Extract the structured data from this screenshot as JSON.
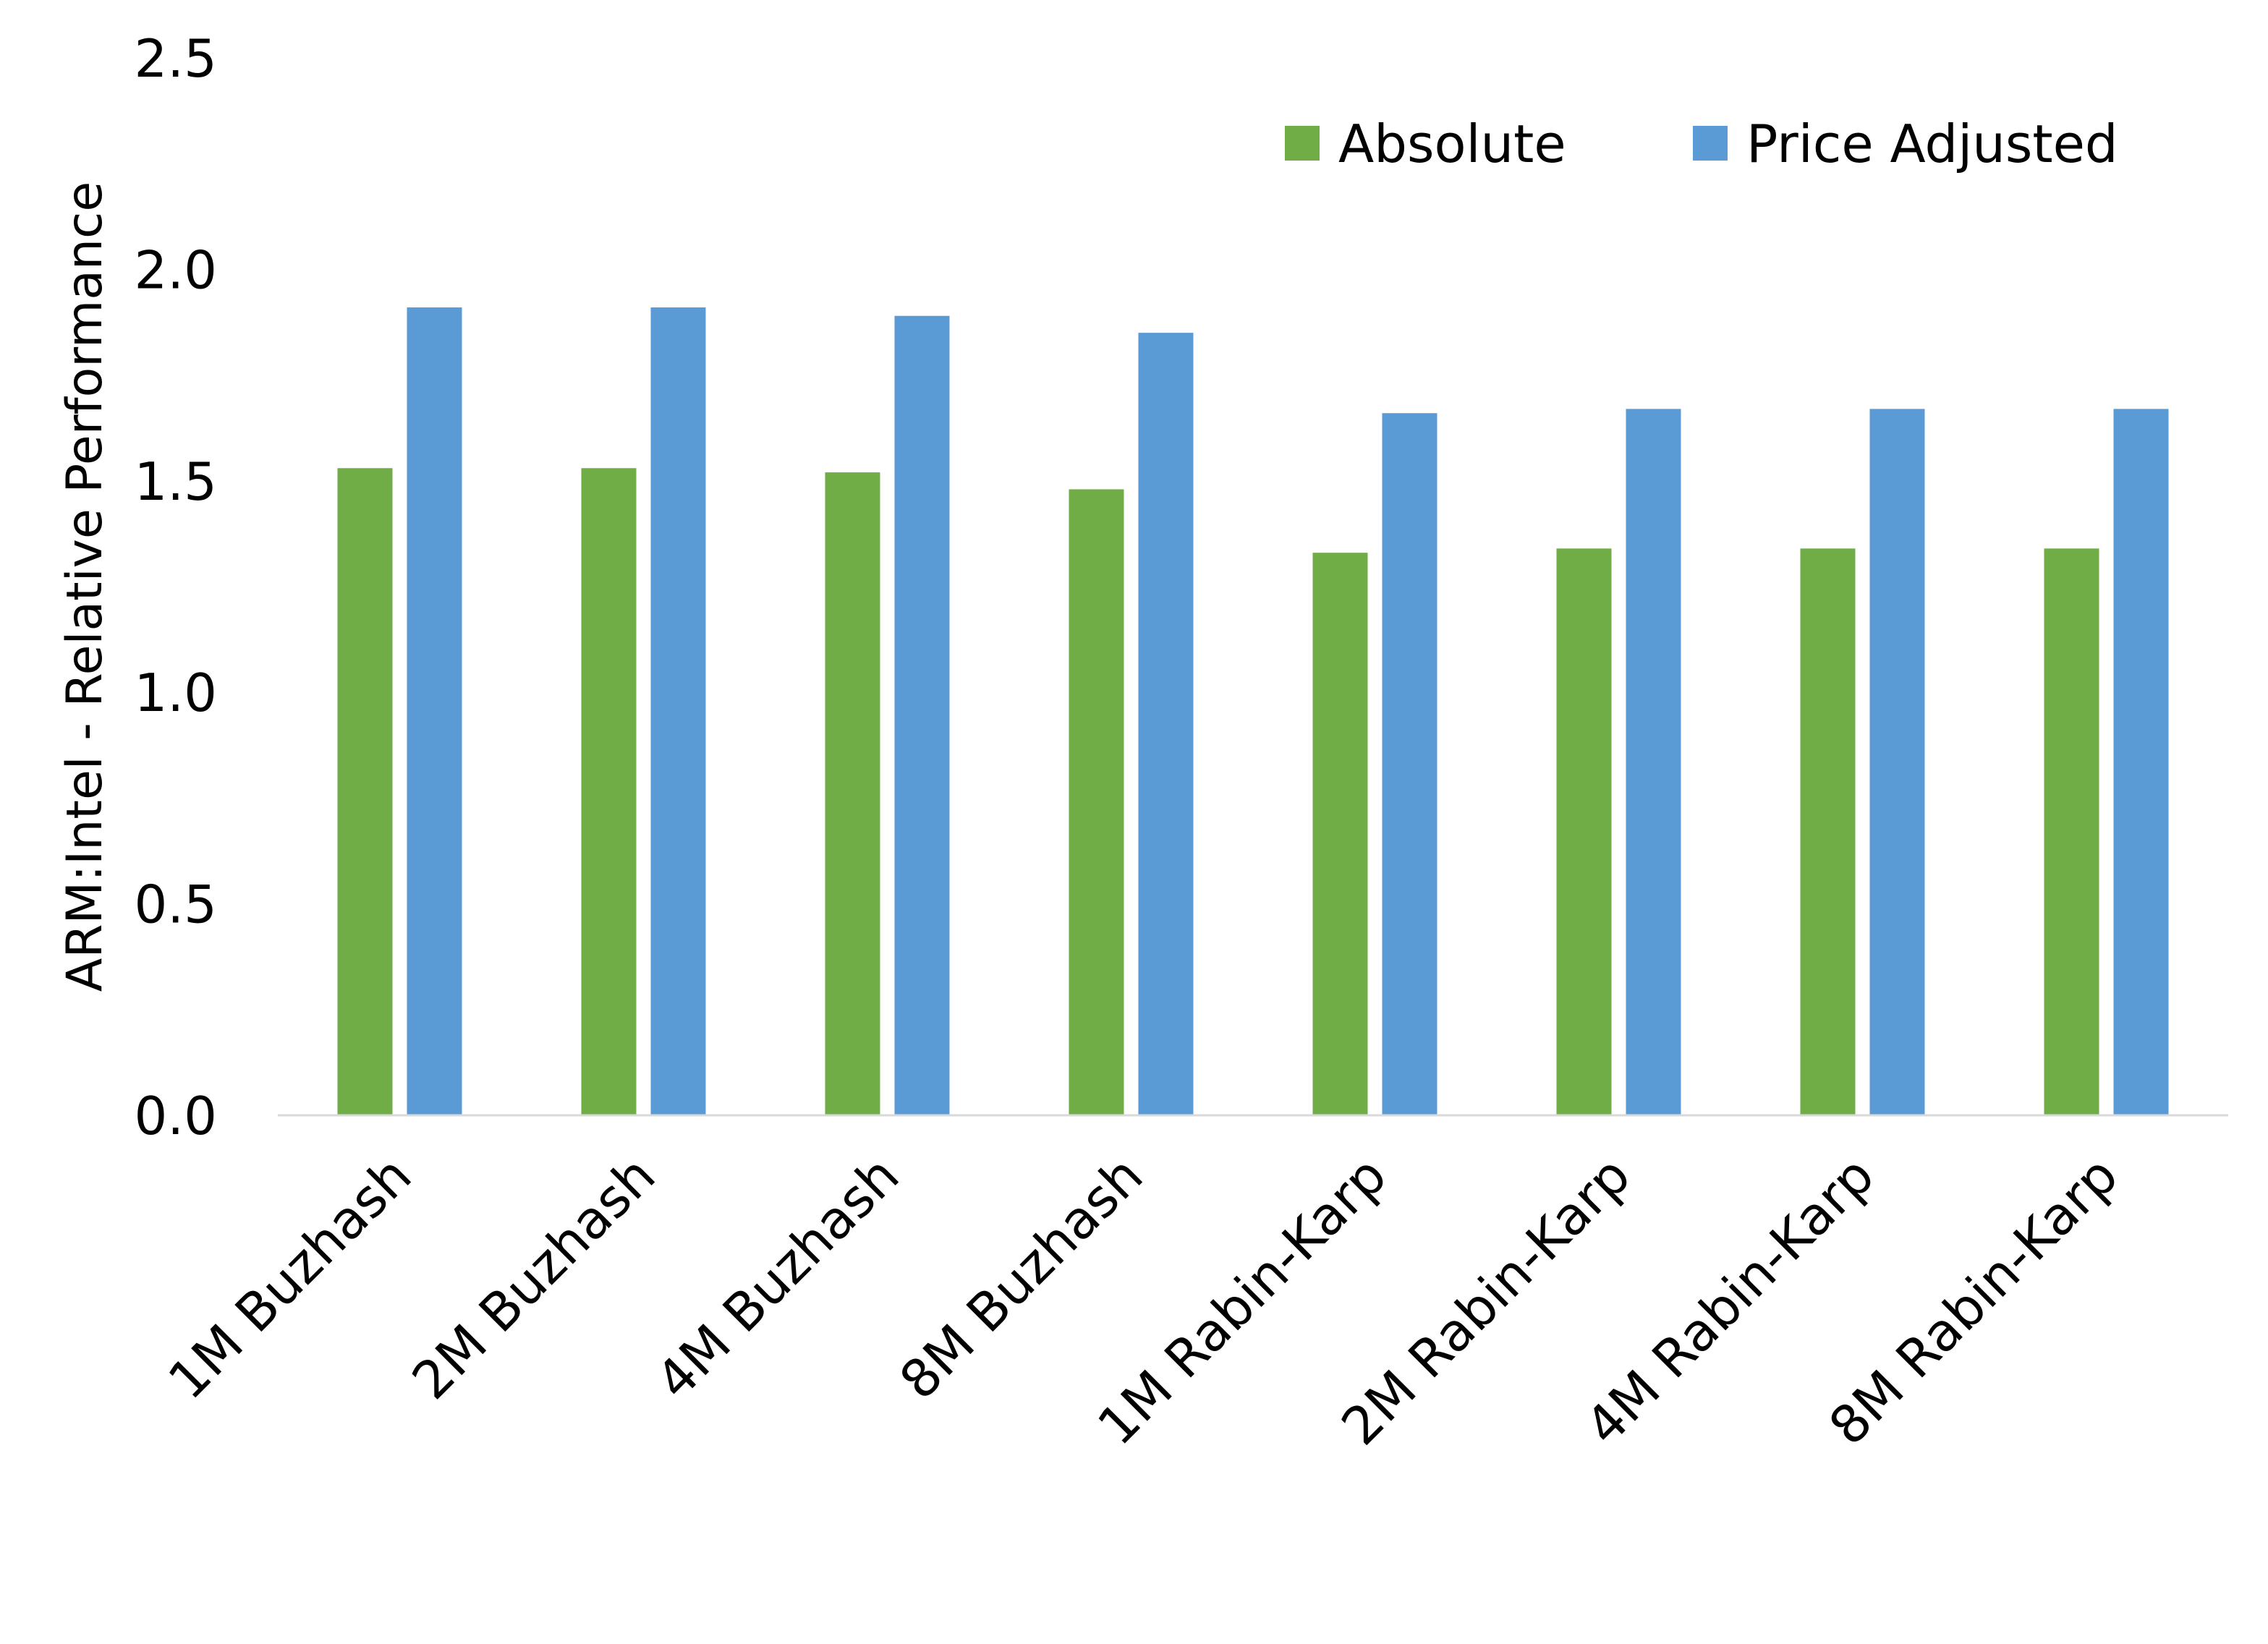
{
  "chart_data": {
    "type": "bar",
    "title": "",
    "xlabel": "",
    "ylabel": "ARM:Intel - Relative Performance",
    "ylim": [
      0,
      2.5
    ],
    "yticks": [
      "0.0",
      "0.5",
      "1.0",
      "1.5",
      "2.0",
      "2.5"
    ],
    "grid": false,
    "legend_position": "top-right",
    "categories": [
      "1M Buzhash",
      "2M Buzhash",
      "4M Buzhash",
      "8M Buzhash",
      "1M Rabin-Karp",
      "2M Rabin-Karp",
      "4M Rabin-Karp",
      "8M Rabin-Karp"
    ],
    "series": [
      {
        "name": "Absolute",
        "color": "#70AD47",
        "values": [
          1.53,
          1.53,
          1.52,
          1.48,
          1.33,
          1.34,
          1.34,
          1.34
        ]
      },
      {
        "name": "Price Adjusted",
        "color": "#5B9BD5",
        "values": [
          1.91,
          1.91,
          1.89,
          1.85,
          1.66,
          1.67,
          1.67,
          1.67
        ]
      }
    ]
  }
}
